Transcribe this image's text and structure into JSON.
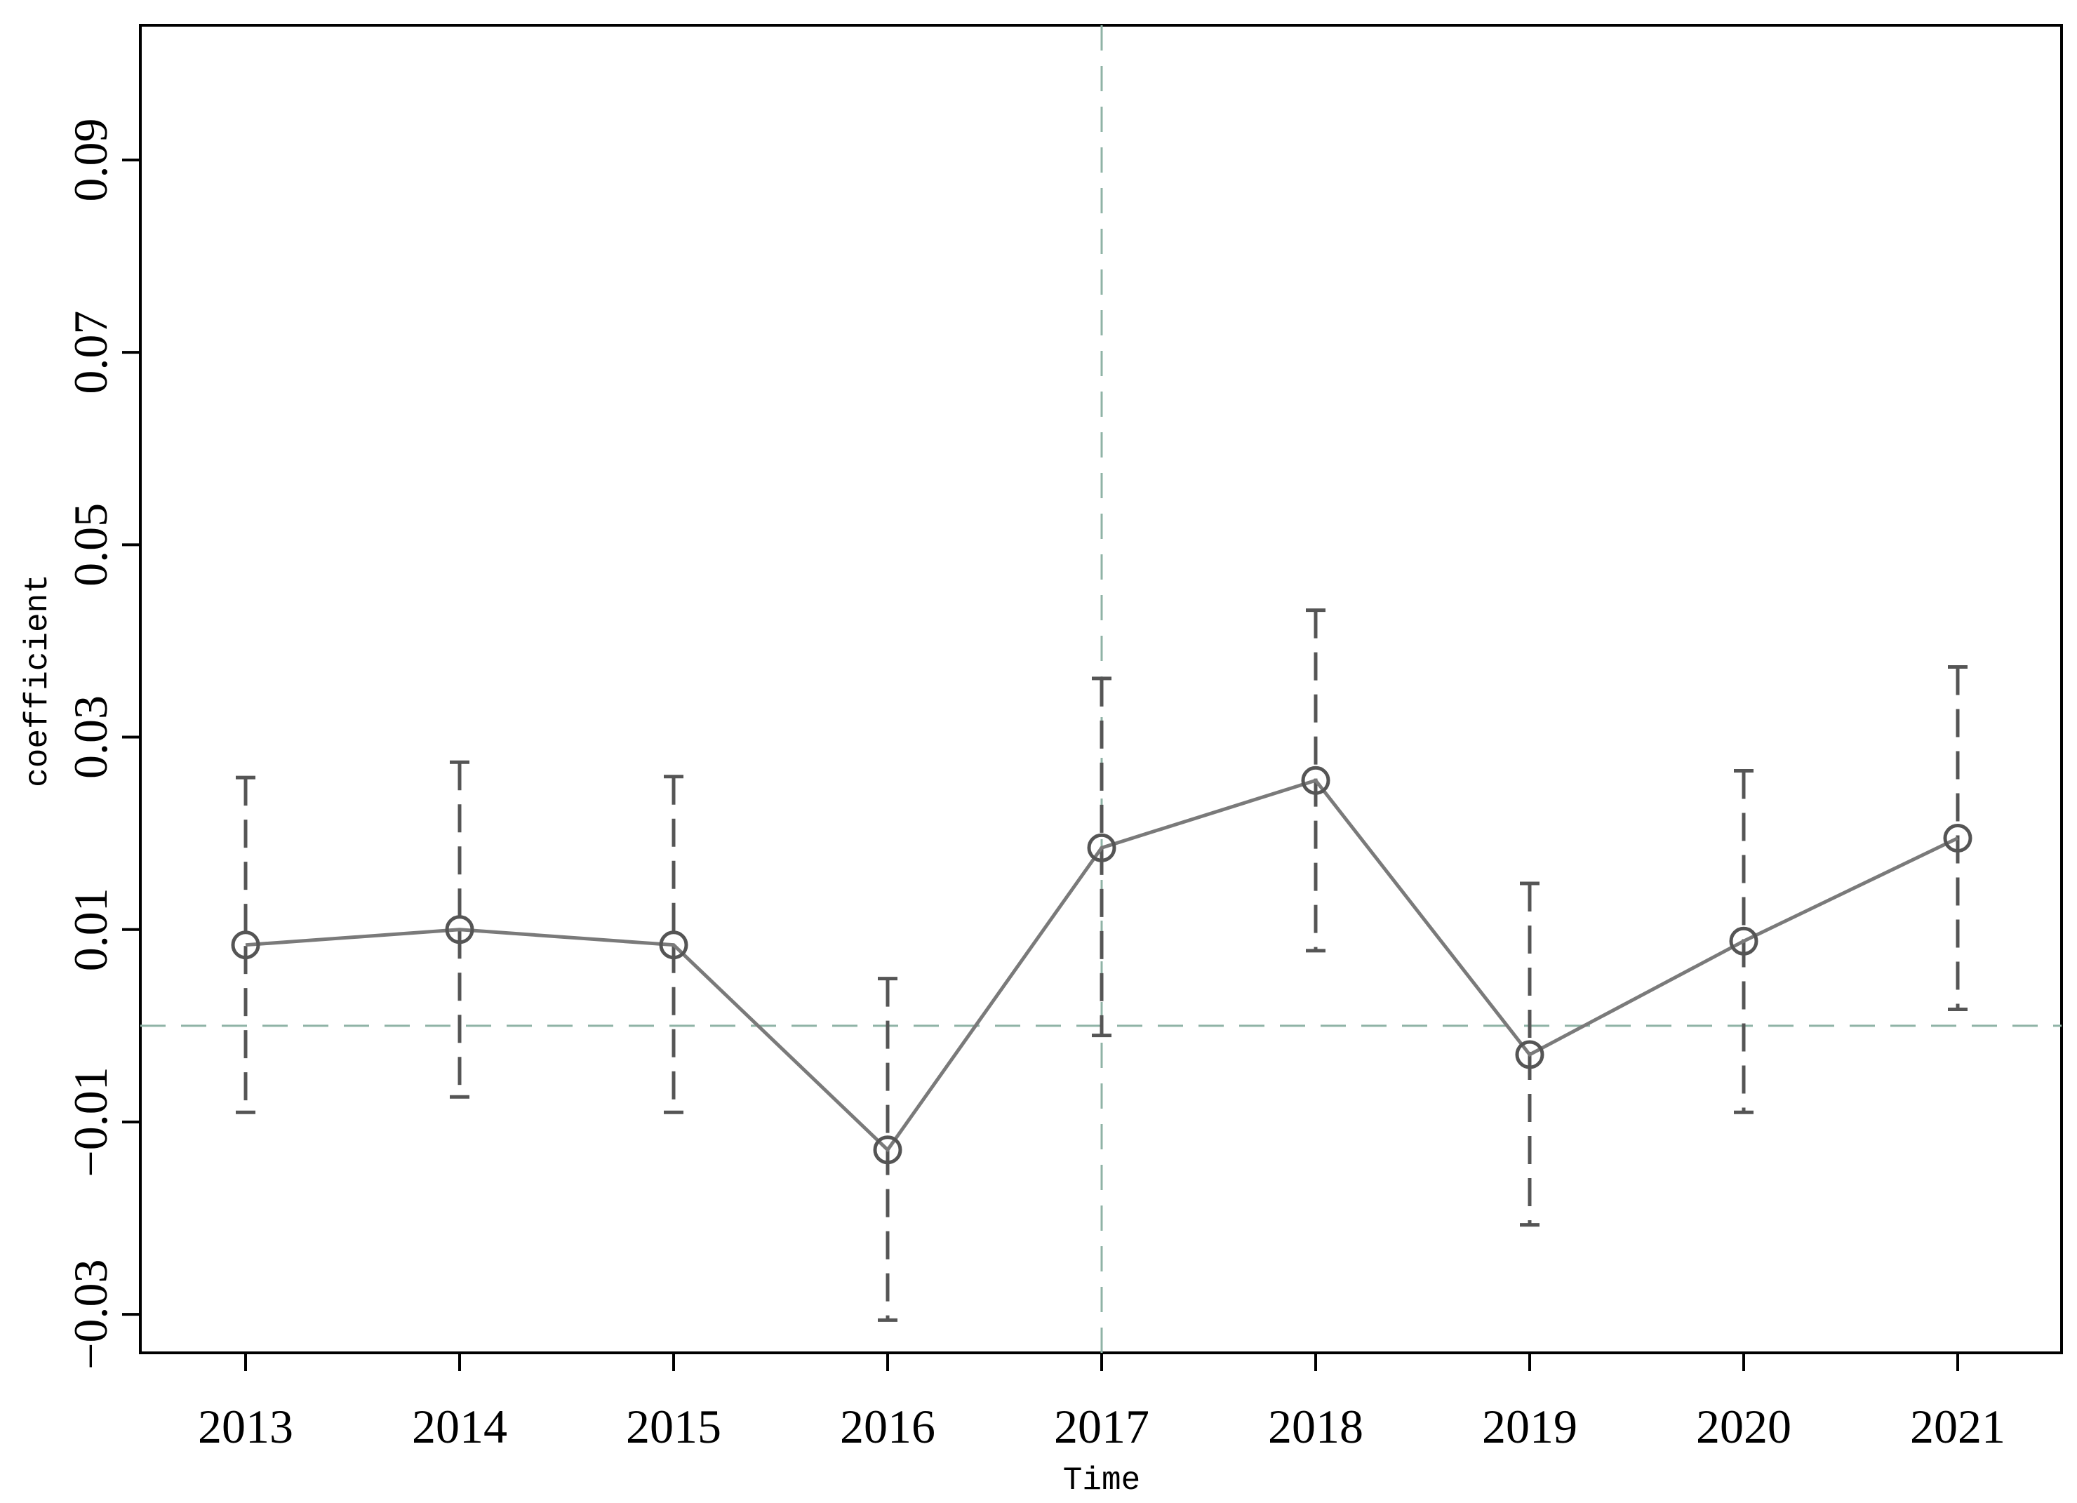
{
  "chart_data": {
    "type": "line",
    "title": "",
    "xlabel": "Time",
    "ylabel": "coefficient",
    "categories": [
      "2013",
      "2014",
      "2015",
      "2016",
      "2017",
      "2018",
      "2019",
      "2020",
      "2021"
    ],
    "series": [
      {
        "values": [
          0.0084,
          0.01,
          0.0084,
          -0.0129,
          0.0185,
          0.0255,
          -0.003,
          0.0088,
          0.0195
        ],
        "ci_upper": [
          0.0258,
          0.0274,
          0.0259,
          0.0049,
          0.0361,
          0.0432,
          0.0148,
          0.0265,
          0.0373
        ],
        "ci_lower": [
          -0.009,
          -0.0074,
          -0.009,
          -0.0306,
          -0.001,
          0.0078,
          -0.0207,
          -0.009,
          0.0017
        ]
      }
    ],
    "yticks": [
      "−0.03",
      "−0.01",
      "0.01",
      "0.03",
      "0.05",
      "0.07",
      "0.09"
    ],
    "ytick_values": [
      -0.03,
      -0.01,
      0.01,
      0.03,
      0.05,
      0.07,
      0.09
    ],
    "ylim": [
      -0.034,
      0.104
    ],
    "reference_lines": {
      "y": 0,
      "x": "2017"
    },
    "grid": false,
    "colors": {
      "line": "#7a7a7a",
      "marker": "#555555",
      "errorbar": "#555555",
      "refline": "#8fb3a6",
      "axis": "#000000"
    }
  }
}
